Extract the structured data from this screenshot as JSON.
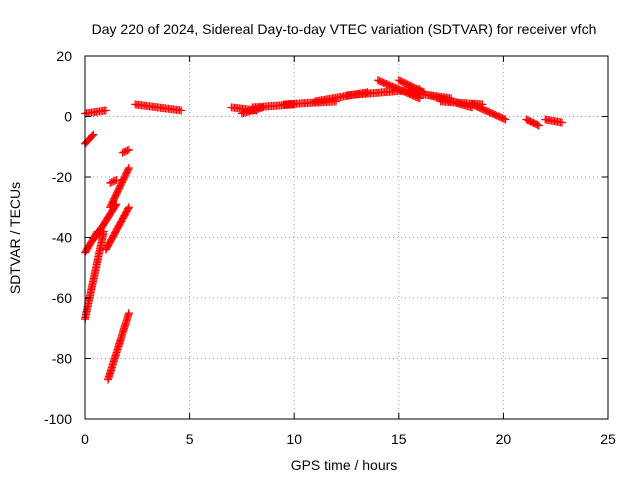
{
  "chart_data": {
    "type": "scatter",
    "title": "Day 220 of 2024, Sidereal Day-to-day VTEC variation (SDTVAR) for receiver vfch",
    "xlabel": "GPS time / hours",
    "ylabel": "SDTVAR / TECUs",
    "xlim": [
      0,
      25
    ],
    "ylim": [
      -100,
      20
    ],
    "xticks": [
      0,
      5,
      10,
      15,
      20,
      25
    ],
    "yticks": [
      -100,
      -80,
      -60,
      -40,
      -20,
      0,
      20
    ],
    "grid": true,
    "marker": "+",
    "series_color": "#ff0000",
    "tracks": [
      {
        "x0": 0.0,
        "y0": 1,
        "x1": 1.0,
        "y1": 2
      },
      {
        "x0": 0.0,
        "y0": -9,
        "x1": 0.4,
        "y1": -6
      },
      {
        "x0": 0.0,
        "y0": -67,
        "x1": 0.9,
        "y1": -38
      },
      {
        "x0": 0.0,
        "y0": -45,
        "x1": 0.6,
        "y1": -38
      },
      {
        "x0": 0.5,
        "y0": -40,
        "x1": 1.5,
        "y1": -29
      },
      {
        "x0": 1.1,
        "y0": -87,
        "x1": 2.1,
        "y1": -65
      },
      {
        "x0": 1.0,
        "y0": -44,
        "x1": 2.1,
        "y1": -30
      },
      {
        "x0": 1.2,
        "y0": -30,
        "x1": 2.1,
        "y1": -17
      },
      {
        "x0": 1.2,
        "y0": -22,
        "x1": 1.5,
        "y1": -21
      },
      {
        "x0": 1.8,
        "y0": -12,
        "x1": 2.1,
        "y1": -11
      },
      {
        "x0": 2.4,
        "y0": 4,
        "x1": 4.6,
        "y1": 2
      },
      {
        "x0": 7.0,
        "y0": 3,
        "x1": 8.2,
        "y1": 2
      },
      {
        "x0": 7.5,
        "y0": 1,
        "x1": 8.5,
        "y1": 3
      },
      {
        "x0": 8.0,
        "y0": 3,
        "x1": 10.0,
        "y1": 4
      },
      {
        "x0": 9.5,
        "y0": 4,
        "x1": 12.0,
        "y1": 5
      },
      {
        "x0": 11.0,
        "y0": 5,
        "x1": 13.5,
        "y1": 8
      },
      {
        "x0": 12.5,
        "y0": 7,
        "x1": 16.0,
        "y1": 9
      },
      {
        "x0": 14.0,
        "y0": 12,
        "x1": 16.0,
        "y1": 6
      },
      {
        "x0": 15.0,
        "y0": 12,
        "x1": 16.2,
        "y1": 8
      },
      {
        "x0": 15.5,
        "y0": 8,
        "x1": 17.5,
        "y1": 6
      },
      {
        "x0": 16.5,
        "y0": 7,
        "x1": 18.5,
        "y1": 3
      },
      {
        "x0": 17.0,
        "y0": 5,
        "x1": 19.0,
        "y1": 4
      },
      {
        "x0": 18.5,
        "y0": 4,
        "x1": 20.1,
        "y1": -1
      },
      {
        "x0": 21.1,
        "y0": -1,
        "x1": 21.7,
        "y1": -3
      },
      {
        "x0": 22.0,
        "y0": -1,
        "x1": 22.8,
        "y1": -2
      }
    ]
  }
}
